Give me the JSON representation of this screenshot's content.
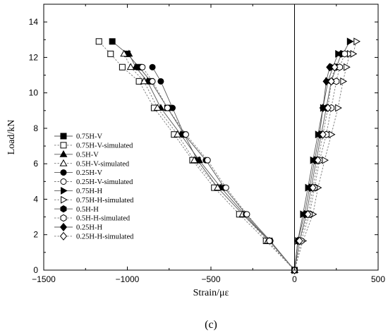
{
  "chart_data": {
    "type": "line",
    "xlabel": "Strain/με",
    "ylabel": "Load/kN",
    "caption": "(c)",
    "xlim": [
      -1500,
      500
    ],
    "ylim": [
      0,
      15
    ],
    "xticks": [
      -1500,
      -1000,
      -500,
      0,
      500
    ],
    "xtick_labels": [
      "−1500",
      "−1000",
      "−500",
      "0",
      "500"
    ],
    "yticks": [
      0,
      2,
      4,
      6,
      8,
      10,
      12,
      14
    ],
    "xminor": 250,
    "yminor": 1,
    "vline": 0,
    "legend_position": "middle-left",
    "series": [
      {
        "name": "0.75H-V",
        "marker": "square",
        "filled": true,
        "dashed": false,
        "x": [
          0,
          -150,
          -310,
          -460,
          -580,
          -660,
          -760,
          -860,
          -930,
          -1000,
          -1090
        ],
        "y": [
          0,
          1.65,
          3.15,
          4.65,
          6.2,
          7.65,
          9.15,
          10.65,
          11.45,
          12.2,
          12.9
        ]
      },
      {
        "name": "0.75H-V-simulated",
        "marker": "square",
        "filled": false,
        "dashed": true,
        "x": [
          0,
          -170,
          -330,
          -480,
          -610,
          -720,
          -840,
          -930,
          -1030,
          -1100,
          -1170
        ],
        "y": [
          0,
          1.65,
          3.15,
          4.65,
          6.2,
          7.65,
          9.15,
          10.65,
          11.45,
          12.2,
          12.9
        ]
      },
      {
        "name": "0.5H-V",
        "marker": "triangle-up",
        "filled": true,
        "dashed": false,
        "x": [
          0,
          -150,
          -300,
          -440,
          -570,
          -680,
          -800,
          -880,
          -950,
          -990
        ],
        "y": [
          0,
          1.65,
          3.15,
          4.65,
          6.2,
          7.65,
          9.15,
          10.65,
          11.45,
          12.2
        ]
      },
      {
        "name": "0.5H-V-simulated",
        "marker": "triangle-up",
        "filled": false,
        "dashed": true,
        "x": [
          0,
          -160,
          -310,
          -460,
          -600,
          -700,
          -820,
          -900,
          -980,
          -1020
        ],
        "y": [
          0,
          1.65,
          3.15,
          4.65,
          6.2,
          7.65,
          9.15,
          10.65,
          11.45,
          12.2
        ]
      },
      {
        "name": "0.25H-V",
        "marker": "circle",
        "filled": true,
        "dashed": false,
        "x": [
          0,
          -145,
          -290,
          -420,
          -530,
          -660,
          -730,
          -800,
          -850
        ],
        "y": [
          0,
          1.65,
          3.15,
          4.65,
          6.2,
          7.65,
          9.15,
          10.65,
          11.45
        ]
      },
      {
        "name": "0.25H-V-simulated",
        "marker": "circle",
        "filled": false,
        "dashed": true,
        "x": [
          0,
          -150,
          -285,
          -410,
          -520,
          -650,
          -760,
          -850,
          -910
        ],
        "y": [
          0,
          1.65,
          3.15,
          4.65,
          6.2,
          7.65,
          9.15,
          10.65,
          11.45
        ]
      },
      {
        "name": "0.75H-H",
        "marker": "triangle-right",
        "filled": true,
        "dashed": false,
        "x": [
          0,
          20,
          50,
          80,
          110,
          140,
          170,
          200,
          230,
          260,
          290,
          330
        ],
        "y": [
          0,
          1.65,
          3.15,
          4.65,
          6.2,
          7.65,
          9.15,
          10.65,
          11.45,
          12.2,
          12.2,
          12.9
        ]
      },
      {
        "name": "0.75H-H-simulated",
        "marker": "triangle-right",
        "filled": false,
        "dashed": true,
        "x": [
          0,
          50,
          110,
          140,
          180,
          220,
          260,
          290,
          310,
          330,
          350,
          370
        ],
        "y": [
          0,
          1.65,
          3.15,
          4.65,
          6.2,
          7.65,
          9.15,
          10.65,
          11.45,
          12.2,
          12.2,
          12.9
        ]
      },
      {
        "name": "0.5H-H",
        "marker": "hexagon",
        "filled": true,
        "dashed": false,
        "x": [
          0,
          30,
          70,
          100,
          130,
          160,
          190,
          220,
          250,
          280
        ],
        "y": [
          0,
          1.65,
          3.15,
          4.65,
          6.2,
          7.65,
          9.15,
          10.65,
          11.45,
          12.2
        ]
      },
      {
        "name": "0.5H-H-simulated",
        "marker": "hexagon",
        "filled": false,
        "dashed": true,
        "x": [
          0,
          40,
          90,
          120,
          150,
          190,
          220,
          250,
          270,
          300
        ],
        "y": [
          0,
          1.65,
          3.15,
          4.65,
          6.2,
          7.65,
          9.15,
          10.65,
          11.45,
          12.2
        ]
      },
      {
        "name": "0.25H-H",
        "marker": "diamond",
        "filled": true,
        "dashed": false,
        "x": [
          0,
          20,
          60,
          90,
          120,
          150,
          170,
          190,
          210
        ],
        "y": [
          0,
          1.65,
          3.15,
          4.65,
          6.2,
          7.65,
          9.15,
          10.65,
          11.45
        ]
      },
      {
        "name": "0.25H-H-simulated",
        "marker": "diamond",
        "filled": false,
        "dashed": true,
        "x": [
          0,
          30,
          80,
          110,
          140,
          170,
          200,
          220,
          240
        ],
        "y": [
          0,
          1.65,
          3.15,
          4.65,
          6.2,
          7.65,
          9.15,
          10.65,
          11.45
        ]
      }
    ]
  }
}
